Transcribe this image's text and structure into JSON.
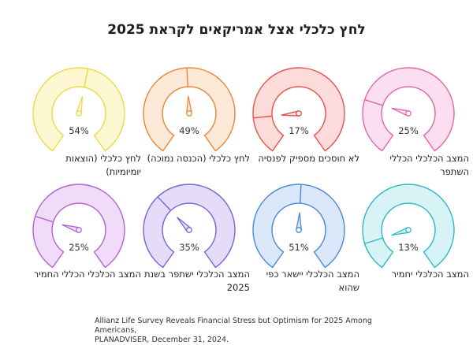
{
  "title": "לחץ כלכלי אצל אמריקאים לקראת 2025",
  "source": {
    "line1": "Allianz Life Survey Reveals Financial Stress but Optimism for 2025 Among Americans,",
    "line2": "PLANADVISER, December 31, 2024."
  },
  "chart_data": {
    "type": "gauge",
    "title": "לחץ כלכלי אצל אמריקאים לקראת 2025",
    "unit": "%",
    "range": [
      0,
      100
    ],
    "items": [
      {
        "label": "לחץ כלכלי (הוצאות יומיומיות)",
        "value": 54,
        "value_label": "54%",
        "color": "#efd84a",
        "fill": "#fdf8d2"
      },
      {
        "label": "לחץ כלכלי (הכנסה נמוכה)",
        "value": 49,
        "value_label": "49%",
        "color": "#e8873a",
        "fill": "#fde9d8"
      },
      {
        "label": "לא חוסכים מספיק לפנסיה",
        "value": 17,
        "value_label": "17%",
        "color": "#e5534b",
        "fill": "#fbdcdb"
      },
      {
        "label": "המצב הכלכלי הכללי השתפר",
        "value": 25,
        "value_label": "25%",
        "color": "#e167a8",
        "fill": "#fbdff0"
      },
      {
        "label": "המצב הכלכלי הכללי החמיר",
        "value": 25,
        "value_label": "25%",
        "color": "#b561d6",
        "fill": "#f0dcf8"
      },
      {
        "label": "המצב הכלכלי ישתפר בשנת 2025",
        "value": 35,
        "value_label": "35%",
        "color": "#7a64d8",
        "fill": "#e4dcf8"
      },
      {
        "label": "המצב הכלכלי יישאר כפי שהוא",
        "value": 51,
        "value_label": "51%",
        "color": "#4a88dc",
        "fill": "#dbe8fa"
      },
      {
        "label": "המצב הכלכלי יחמיר",
        "value": 13,
        "value_label": "13%",
        "color": "#2fb8c6",
        "fill": "#d8f3f6"
      }
    ]
  }
}
